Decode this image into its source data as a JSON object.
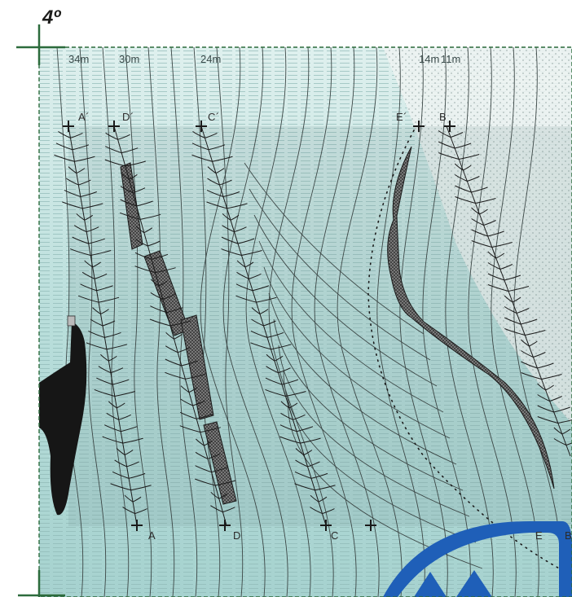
{
  "sheet": {
    "label": "4º"
  },
  "distances": [
    "34m",
    "30m",
    "24m",
    "14m",
    "11m"
  ],
  "points_top": [
    "A´",
    "D´",
    "C´",
    "E´",
    "B"
  ],
  "points_bottom": [
    "A",
    "D",
    "C",
    "E",
    "B"
  ],
  "colors": {
    "water_light": "#d6ecea",
    "water_mid": "#a7d1cf",
    "border_green": "#2c6b3c",
    "dark_fill": "#1a1a1a",
    "logo_blue": "#1f5fb8"
  }
}
